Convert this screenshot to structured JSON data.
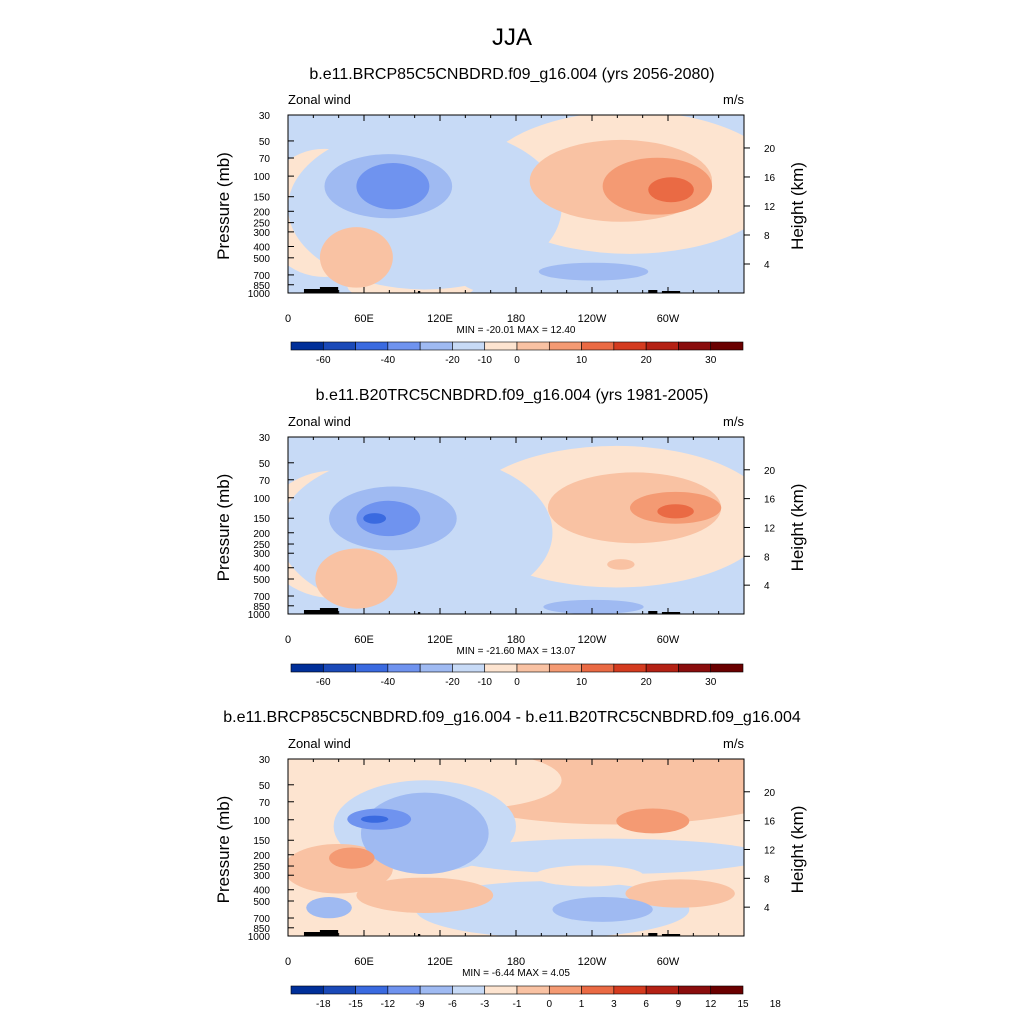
{
  "page_title": "JJA",
  "chart_data": [
    {
      "type": "heatmap",
      "title": "b.e11.BRCP85C5CNBDRD.f09_g16.004 (yrs 2056-2080)",
      "left_label": "Zonal wind",
      "right_label": "m/s",
      "ylabel": "Pressure (mb)",
      "ylabel_right": "Height (km)",
      "x_ticks": [
        "0",
        "60E",
        "120E",
        "180",
        "120W",
        "60W"
      ],
      "y_ticks": [
        "30",
        "50",
        "70",
        "100",
        "150",
        "200",
        "250",
        "300",
        "400",
        "500",
        "700",
        "850",
        "1000"
      ],
      "height_ticks": [
        "20",
        "16",
        "12",
        "8",
        "4"
      ],
      "stats": "MIN = -20.01  MAX =  12.40",
      "colorbar_labels": [
        "-60",
        "-40",
        "-20",
        "-10",
        "0",
        "10",
        "20",
        "30"
      ],
      "colors": [
        "#002f99",
        "#1a49b8",
        "#3a6ae0",
        "#6f93ef",
        "#9fbaf2",
        "#c7daf6",
        "#fde4d0",
        "#f9c2a3",
        "#f49a73",
        "#ea6a44",
        "#d43b1f",
        "#b42114",
        "#8a0d0d",
        "#6a0000"
      ]
    },
    {
      "type": "heatmap",
      "title": "b.e11.B20TRC5CNBDRD.f09_g16.004 (yrs 1981-2005)",
      "left_label": "Zonal wind",
      "right_label": "m/s",
      "ylabel": "Pressure (mb)",
      "ylabel_right": "Height (km)",
      "x_ticks": [
        "0",
        "60E",
        "120E",
        "180",
        "120W",
        "60W"
      ],
      "y_ticks": [
        "30",
        "50",
        "70",
        "100",
        "150",
        "200",
        "250",
        "300",
        "400",
        "500",
        "700",
        "850",
        "1000"
      ],
      "height_ticks": [
        "20",
        "16",
        "12",
        "8",
        "4"
      ],
      "stats": "MIN = -21.60  MAX =  13.07",
      "colorbar_labels": [
        "-60",
        "-40",
        "-20",
        "-10",
        "0",
        "10",
        "20",
        "30"
      ],
      "colors": [
        "#002f99",
        "#1a49b8",
        "#3a6ae0",
        "#6f93ef",
        "#9fbaf2",
        "#c7daf6",
        "#fde4d0",
        "#f9c2a3",
        "#f49a73",
        "#ea6a44",
        "#d43b1f",
        "#b42114",
        "#8a0d0d",
        "#6a0000"
      ]
    },
    {
      "type": "heatmap",
      "title": "b.e11.BRCP85C5CNBDRD.f09_g16.004 - b.e11.B20TRC5CNBDRD.f09_g16.004",
      "left_label": "Zonal wind",
      "right_label": "m/s",
      "ylabel": "Pressure (mb)",
      "ylabel_right": "Height (km)",
      "x_ticks": [
        "0",
        "60E",
        "120E",
        "180",
        "120W",
        "60W"
      ],
      "y_ticks": [
        "30",
        "50",
        "70",
        "100",
        "150",
        "200",
        "250",
        "300",
        "400",
        "500",
        "700",
        "850",
        "1000"
      ],
      "height_ticks": [
        "20",
        "16",
        "12",
        "8",
        "4"
      ],
      "stats": "MIN = -6.44  MAX =  4.05",
      "colorbar_labels": [
        "-18",
        "-15",
        "-12",
        "-9",
        "-6",
        "-3",
        "-1",
        "0",
        "1",
        "3",
        "6",
        "9",
        "12",
        "15",
        "18"
      ],
      "colors": [
        "#002f99",
        "#1a49b8",
        "#3a6ae0",
        "#6f93ef",
        "#9fbaf2",
        "#c7daf6",
        "#fde4d0",
        "#f9c2a3",
        "#f49a73",
        "#ea6a44",
        "#d43b1f",
        "#b42114",
        "#8a0d0d",
        "#6a0000"
      ]
    }
  ]
}
